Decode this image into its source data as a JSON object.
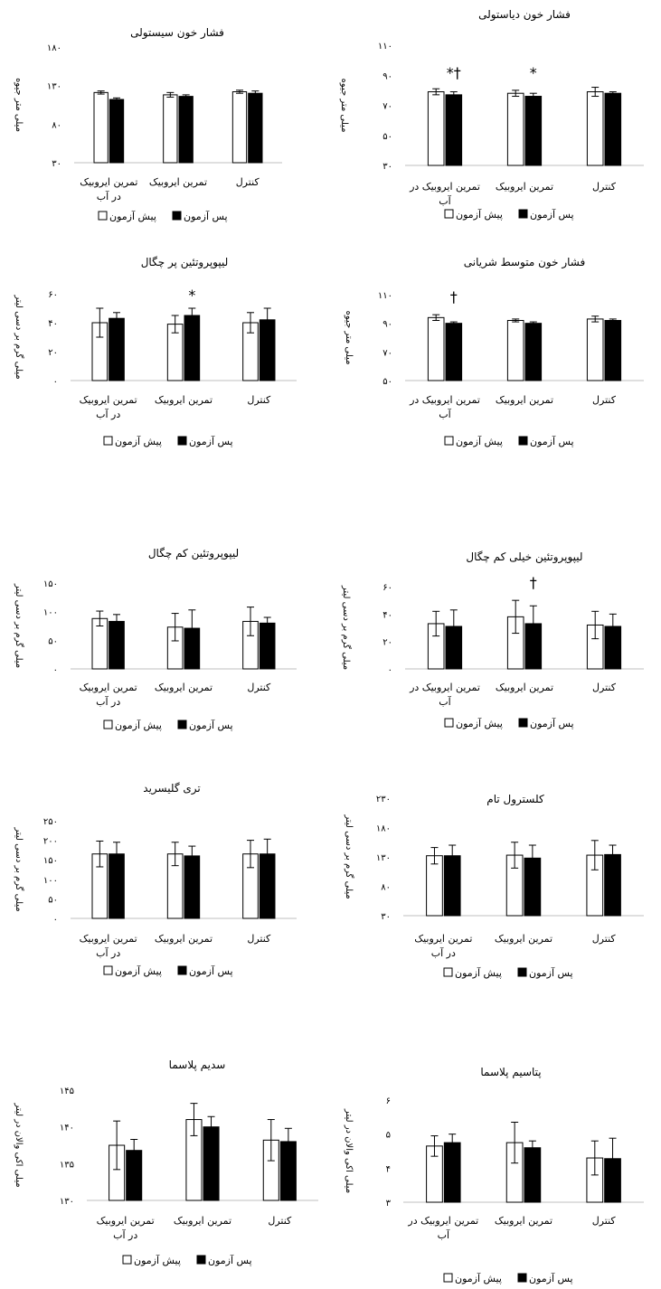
{
  "legend": {
    "pre": "پیش آزمون",
    "post": "پس آزمون"
  },
  "chart_data": [
    {
      "id": "sbp",
      "type": "bar",
      "title": "فشار خون سیستولی",
      "ylabel": "میلی متر جیوه",
      "ylim": [
        30,
        180
      ],
      "yticks": [
        "۳۰",
        "۸۰",
        "۱۳۰",
        "۱۸۰"
      ],
      "categories": [
        [
          "تمرین ایروبیک",
          "در آب"
        ],
        [
          "تمرین ایروبیک"
        ],
        [
          "کنترل"
        ]
      ],
      "series": [
        {
          "name": "پیش آزمون",
          "values": [
            121,
            118,
            122
          ],
          "errors": [
            2,
            3,
            2
          ]
        },
        {
          "name": "پس آزمون",
          "values": [
            112,
            116,
            120
          ],
          "errors": [
            2,
            2,
            3
          ]
        }
      ],
      "marks": []
    },
    {
      "id": "dbp",
      "type": "bar",
      "title": "فشار خون دیاستولی",
      "ylabel": "میلی متر جیوه",
      "ylim": [
        30,
        110
      ],
      "yticks": [
        "۳۰",
        "۵۰",
        "۷۰",
        "۹۰",
        "۱۱۰"
      ],
      "categories": [
        [
          "تمرین ایروبیک در",
          "آب"
        ],
        [
          "تمرین ایروبیک"
        ],
        [
          "کنترل"
        ]
      ],
      "series": [
        {
          "name": "پیش آزمون",
          "values": [
            79,
            78,
            79
          ],
          "errors": [
            2,
            2,
            3
          ]
        },
        {
          "name": "پس آزمون",
          "values": [
            77,
            76,
            78
          ],
          "errors": [
            2,
            2,
            1
          ]
        }
      ],
      "marks": [
        {
          "category": 0,
          "text": "*†"
        },
        {
          "category": 1,
          "text": "*"
        }
      ]
    },
    {
      "id": "hdl",
      "type": "bar",
      "title": "لیپوپروتئین پر چگال",
      "ylabel": "میلی گرم بر دسی لیتر",
      "ylim": [
        0,
        60
      ],
      "yticks": [
        "۰",
        "۲۰",
        "۴۰",
        "۶۰"
      ],
      "categories": [
        [
          "تمرین ایروبیک",
          "در آب"
        ],
        [
          "تمرین ایروبیک"
        ],
        [
          "کنترل"
        ]
      ],
      "series": [
        {
          "name": "پیش آزمون",
          "values": [
            40,
            39,
            40
          ],
          "errors": [
            10,
            6,
            7
          ]
        },
        {
          "name": "پس آزمون",
          "values": [
            43,
            45,
            42
          ],
          "errors": [
            4,
            5,
            8
          ]
        }
      ],
      "marks": [
        {
          "category": 1,
          "text": "*"
        }
      ]
    },
    {
      "id": "map",
      "type": "bar",
      "title": "فشار خون متوسط شریانی",
      "ylabel": "میلی متر جیوه",
      "ylim": [
        50,
        110
      ],
      "yticks": [
        "۵۰",
        "۷۰",
        "۹۰",
        "۱۱۰"
      ],
      "categories": [
        [
          "تمرین ایروبیک در",
          "آب"
        ],
        [
          "تمرین ایروبیک"
        ],
        [
          "کنترل"
        ]
      ],
      "series": [
        {
          "name": "پیش آزمون",
          "values": [
            94,
            92,
            93
          ],
          "errors": [
            2,
            1,
            2
          ]
        },
        {
          "name": "پس آزمون",
          "values": [
            90,
            90,
            92
          ],
          "errors": [
            1,
            1,
            1
          ]
        }
      ],
      "marks": [
        {
          "category": 0,
          "text": "†"
        }
      ]
    },
    {
      "id": "ldl",
      "type": "bar",
      "title": "لیپوپروتئین کم چگال",
      "ylabel": "میلی گرم بر دسی لیتر",
      "ylim": [
        0,
        150
      ],
      "yticks": [
        "۰",
        "۵۰",
        "۱۰۰",
        "۱۵۰"
      ],
      "categories": [
        [
          "تمرین ایروبیک",
          "در آب"
        ],
        [
          "تمرین ایروبیک"
        ],
        [
          "کنترل"
        ]
      ],
      "series": [
        {
          "name": "پیش آزمون",
          "values": [
            88,
            73,
            83
          ],
          "errors": [
            13,
            24,
            25
          ]
        },
        {
          "name": "پس آزمون",
          "values": [
            83,
            71,
            80
          ],
          "errors": [
            12,
            32,
            10
          ]
        }
      ],
      "marks": []
    },
    {
      "id": "vldl",
      "type": "bar",
      "title": "لیپوپروتئین خیلی کم چگال",
      "ylabel": "میلی گرم بر دسی لیتر",
      "ylim": [
        0,
        60
      ],
      "yticks": [
        "۰",
        "۲۰",
        "۴۰",
        "۶۰"
      ],
      "categories": [
        [
          "تمرین ایروبیک در",
          "آب"
        ],
        [
          "تمرین ایروبیک"
        ],
        [
          "کنترل"
        ]
      ],
      "series": [
        {
          "name": "پیش آزمون",
          "values": [
            33,
            38,
            32
          ],
          "errors": [
            9,
            12,
            10
          ]
        },
        {
          "name": "پس آزمون",
          "values": [
            31,
            33,
            31
          ],
          "errors": [
            12,
            13,
            9
          ]
        }
      ],
      "marks": [
        {
          "category": 1,
          "text": "†"
        }
      ]
    },
    {
      "id": "tg",
      "type": "bar",
      "title": "تری گلیسرید",
      "ylabel": "میلی گرم بر دسی لیتر",
      "ylim": [
        0,
        250
      ],
      "yticks": [
        "۰",
        "۵۰",
        "۱۰۰",
        "۱۵۰",
        "۲۰۰",
        "۲۵۰"
      ],
      "categories": [
        [
          "تمرین ایروبیک",
          "در آب"
        ],
        [
          "تمرین ایروبیک"
        ],
        [
          "کنترل"
        ]
      ],
      "series": [
        {
          "name": "پیش آزمون",
          "values": [
            165,
            165,
            165
          ],
          "errors": [
            33,
            30,
            35
          ]
        },
        {
          "name": "پس آزمون",
          "values": [
            165,
            160,
            165
          ],
          "errors": [
            30,
            25,
            38
          ]
        }
      ],
      "marks": []
    },
    {
      "id": "chol",
      "type": "bar",
      "title": "کلسترول تام",
      "ylabel": "میلی گرم بر دسی لیتر",
      "ylim": [
        30,
        230
      ],
      "yticks": [
        "۳۰",
        "۸۰",
        "۱۳۰",
        "۱۸۰",
        "۲۳۰"
      ],
      "categories": [
        [
          "تمرین ایروبیک",
          "در آب"
        ],
        [
          "تمرین ایروبیک"
        ],
        [
          "کنترل"
        ]
      ],
      "series": [
        {
          "name": "پیش آزمون",
          "values": [
            132,
            133,
            133
          ],
          "errors": [
            14,
            22,
            25
          ]
        },
        {
          "name": "پس آزمون",
          "values": [
            132,
            128,
            134
          ],
          "errors": [
            18,
            22,
            16
          ]
        }
      ],
      "marks": []
    },
    {
      "id": "na",
      "type": "bar",
      "title": "سدیم پلاسما",
      "ylabel": "میلی اکی والان در لیتر",
      "ylim": [
        130,
        145
      ],
      "yticks": [
        "۱۳۰",
        "۱۳۵",
        "۱۴۰",
        "۱۴۵"
      ],
      "categories": [
        [
          "تمرین ایروبیک",
          "در آب"
        ],
        [
          "تمرین ایروبیک"
        ],
        [
          "کنترل"
        ]
      ],
      "series": [
        {
          "name": "پیش آزمون",
          "values": [
            137.5,
            141,
            138.2
          ],
          "errors": [
            3.3,
            2.2,
            2.8
          ]
        },
        {
          "name": "پس آزمون",
          "values": [
            136.8,
            140,
            138
          ],
          "errors": [
            1.5,
            1.4,
            1.8
          ]
        }
      ],
      "marks": []
    },
    {
      "id": "k",
      "type": "bar",
      "title": "پتاسیم پلاسما",
      "ylabel": "میلی اکی والان در لیتر",
      "ylim": [
        3,
        6
      ],
      "yticks": [
        "۳",
        "۴",
        "۵",
        "۶"
      ],
      "categories": [
        [
          "تمرین ایروبیک در",
          "آب"
        ],
        [
          "تمرین ایروبیک"
        ],
        [
          "کنترل"
        ]
      ],
      "series": [
        {
          "name": "پیش آزمون",
          "values": [
            4.65,
            4.75,
            4.3
          ],
          "errors": [
            0.3,
            0.6,
            0.5
          ]
        },
        {
          "name": "پس آزمون",
          "values": [
            4.75,
            4.6,
            4.28
          ],
          "errors": [
            0.25,
            0.2,
            0.6
          ]
        }
      ],
      "marks": []
    }
  ]
}
